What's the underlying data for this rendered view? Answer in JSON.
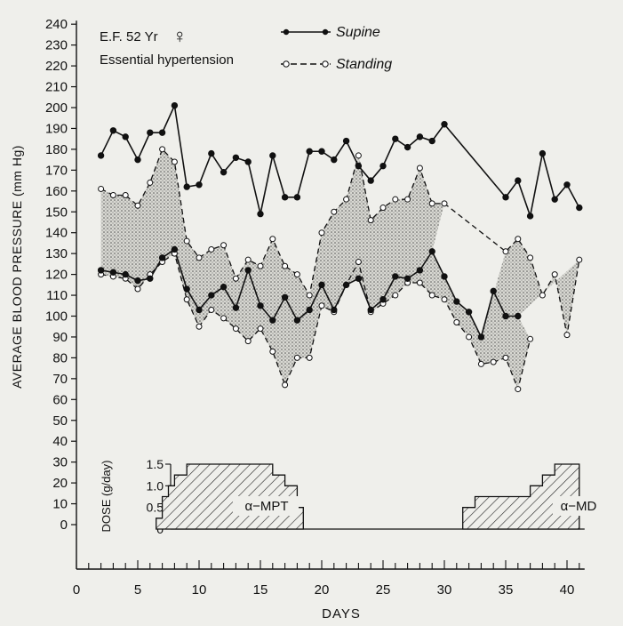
{
  "header": {
    "subject": "E.F. 52 Yr",
    "sex_symbol": "♀",
    "diagnosis": "Essential hypertension"
  },
  "legend": {
    "supine": "Supine",
    "standing": "Standing"
  },
  "dose_panel": {
    "ylabel": "DOSE (g/day)",
    "ticks": [
      "1.5",
      "1.0",
      "0.5",
      "0"
    ],
    "drug1": "α−MPT",
    "drug2": "α−MD"
  },
  "chart_data": {
    "type": "line",
    "xlabel": "DAYS",
    "ylabel": "AVERAGE BLOOD PRESSURE (mm Hg)",
    "xlim": [
      0,
      41
    ],
    "ylim": [
      0,
      240
    ],
    "x_ticks": [
      0,
      5,
      10,
      15,
      20,
      25,
      30,
      35,
      40
    ],
    "y_ticks": [
      0,
      10,
      20,
      30,
      40,
      50,
      60,
      70,
      80,
      90,
      100,
      110,
      120,
      130,
      140,
      150,
      160,
      170,
      180,
      190,
      200,
      210,
      220,
      230,
      240
    ],
    "shading": "stippled band between supine and standing curves",
    "series": [
      {
        "name": "Supine",
        "style": "solid line, filled dots",
        "systolic": [
          [
            2,
            177
          ],
          [
            3,
            189
          ],
          [
            4,
            186
          ],
          [
            5,
            175
          ],
          [
            6,
            188
          ],
          [
            7,
            188
          ],
          [
            8,
            201
          ],
          [
            9,
            162
          ],
          [
            10,
            163
          ],
          [
            11,
            178
          ],
          [
            12,
            169
          ],
          [
            13,
            176
          ],
          [
            14,
            174
          ],
          [
            15,
            149
          ],
          [
            16,
            177
          ],
          [
            17,
            157
          ],
          [
            18,
            157
          ],
          [
            19,
            179
          ],
          [
            20,
            179
          ],
          [
            21,
            175
          ],
          [
            22,
            184
          ],
          [
            23,
            172
          ],
          [
            24,
            165
          ],
          [
            25,
            172
          ],
          [
            26,
            185
          ],
          [
            27,
            181
          ],
          [
            28,
            186
          ],
          [
            29,
            184
          ],
          [
            30,
            192
          ],
          [
            35,
            157
          ],
          [
            36,
            165
          ],
          [
            37,
            148
          ],
          [
            38,
            178
          ],
          [
            39,
            156
          ],
          [
            40,
            163
          ],
          [
            41,
            152
          ]
        ],
        "diastolic": [
          [
            2,
            122
          ],
          [
            3,
            121
          ],
          [
            4,
            120
          ],
          [
            5,
            117
          ],
          [
            6,
            118
          ],
          [
            7,
            128
          ],
          [
            8,
            132
          ],
          [
            9,
            113
          ],
          [
            10,
            103
          ],
          [
            11,
            110
          ],
          [
            12,
            114
          ],
          [
            13,
            104
          ],
          [
            14,
            122
          ],
          [
            15,
            105
          ],
          [
            16,
            98
          ],
          [
            17,
            109
          ],
          [
            18,
            98
          ],
          [
            19,
            103
          ],
          [
            20,
            115
          ],
          [
            21,
            103
          ],
          [
            22,
            115
          ],
          [
            23,
            118
          ],
          [
            24,
            103
          ],
          [
            25,
            108
          ],
          [
            26,
            119
          ],
          [
            27,
            118
          ],
          [
            28,
            122
          ],
          [
            29,
            131
          ],
          [
            30,
            119
          ],
          [
            31,
            107
          ],
          [
            32,
            102
          ],
          [
            33,
            90
          ],
          [
            34,
            112
          ],
          [
            35,
            100
          ],
          [
            36,
            100
          ]
        ]
      },
      {
        "name": "Standing",
        "style": "dashed line, open circles",
        "systolic": [
          [
            2,
            161
          ],
          [
            3,
            158
          ],
          [
            4,
            158
          ],
          [
            5,
            153
          ],
          [
            6,
            164
          ],
          [
            7,
            180
          ],
          [
            8,
            174
          ],
          [
            9,
            136
          ],
          [
            10,
            128
          ],
          [
            11,
            132
          ],
          [
            12,
            134
          ],
          [
            13,
            118
          ],
          [
            14,
            127
          ],
          [
            15,
            124
          ],
          [
            16,
            137
          ],
          [
            17,
            124
          ],
          [
            18,
            120
          ],
          [
            19,
            110
          ],
          [
            20,
            140
          ],
          [
            21,
            150
          ],
          [
            22,
            156
          ],
          [
            23,
            177
          ],
          [
            24,
            146
          ],
          [
            25,
            152
          ],
          [
            26,
            156
          ],
          [
            27,
            156
          ],
          [
            28,
            171
          ],
          [
            29,
            154
          ],
          [
            30,
            154
          ],
          [
            35,
            131
          ],
          [
            36,
            137
          ],
          [
            37,
            128
          ],
          [
            38,
            110
          ],
          [
            39,
            120
          ],
          [
            40,
            91
          ],
          [
            41,
            127
          ]
        ],
        "diastolic": [
          [
            2,
            120
          ],
          [
            3,
            119
          ],
          [
            4,
            118
          ],
          [
            5,
            113
          ],
          [
            6,
            120
          ],
          [
            7,
            126
          ],
          [
            8,
            130
          ],
          [
            9,
            108
          ],
          [
            10,
            95
          ],
          [
            11,
            103
          ],
          [
            12,
            99
          ],
          [
            13,
            94
          ],
          [
            14,
            88
          ],
          [
            15,
            94
          ],
          [
            16,
            83
          ],
          [
            17,
            67
          ],
          [
            18,
            80
          ],
          [
            19,
            80
          ],
          [
            20,
            105
          ],
          [
            21,
            102
          ],
          [
            22,
            115
          ],
          [
            23,
            126
          ],
          [
            24,
            102
          ],
          [
            25,
            106
          ],
          [
            26,
            110
          ],
          [
            27,
            116
          ],
          [
            28,
            116
          ],
          [
            29,
            110
          ],
          [
            30,
            108
          ],
          [
            31,
            97
          ],
          [
            32,
            90
          ],
          [
            33,
            77
          ],
          [
            34,
            78
          ],
          [
            35,
            80
          ],
          [
            36,
            65
          ],
          [
            37,
            89
          ]
        ]
      }
    ],
    "dose": {
      "ylim": [
        0,
        1.5
      ],
      "alpha_mpt": [
        [
          6.5,
          0.25
        ],
        [
          7,
          0.75
        ],
        [
          7.5,
          1.0
        ],
        [
          8,
          1.25
        ],
        [
          9,
          1.5
        ],
        [
          16,
          1.25
        ],
        [
          17,
          1.0
        ],
        [
          18,
          0.5
        ],
        [
          18.5,
          0
        ]
      ],
      "alpha_md": [
        [
          31.5,
          0.5
        ],
        [
          32.5,
          0.75
        ],
        [
          37,
          1.0
        ],
        [
          38,
          1.25
        ],
        [
          39,
          1.5
        ],
        [
          41,
          1.5
        ]
      ]
    }
  }
}
